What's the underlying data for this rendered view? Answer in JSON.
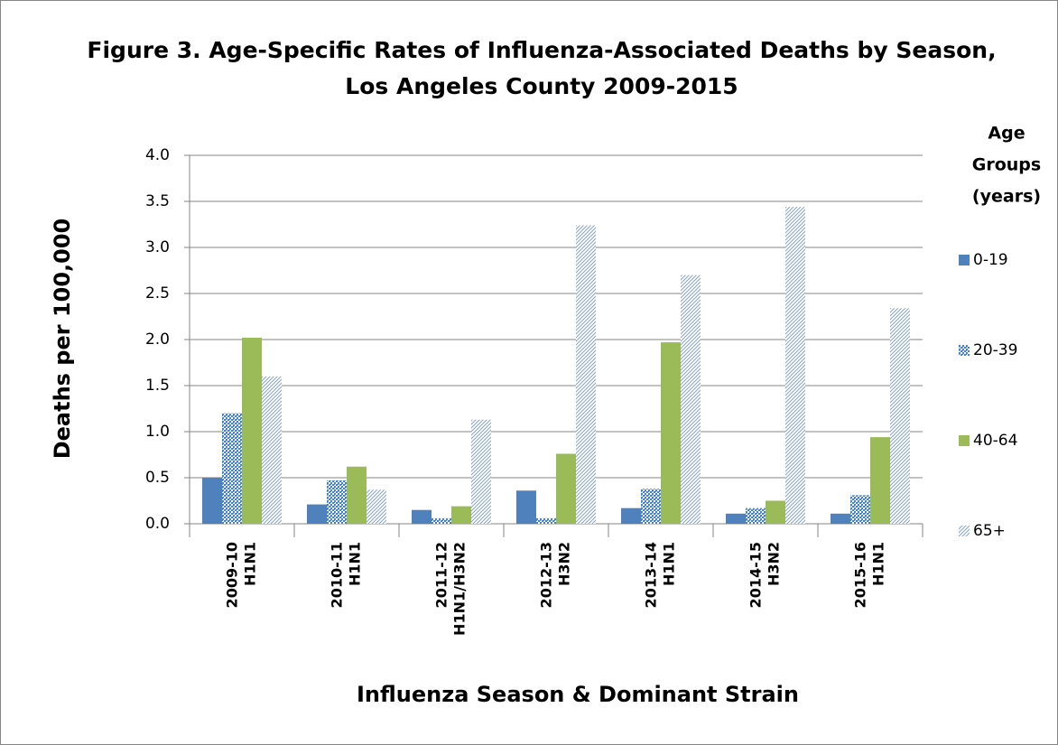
{
  "chart_data": {
    "type": "bar",
    "title": [
      "Figure 3. Age-Specific Rates of Influenza-Associated Deaths by Season,",
      "Los Angeles County 2009-2015"
    ],
    "x_label": "Influenza Season & Dominant Strain",
    "y_label": "Deaths per 100,000",
    "legend_title": [
      "Age",
      "Groups",
      "(years)"
    ],
    "legend": "right",
    "grid": true,
    "categories": [
      [
        "2009-10",
        "H1N1"
      ],
      [
        "2010-11",
        "H1N1"
      ],
      [
        "2011-12",
        "H1N1/H3N2"
      ],
      [
        "2012-13",
        "H3N2"
      ],
      [
        "2013-14",
        "H1N1"
      ],
      [
        "2014-15",
        "H3N2"
      ],
      [
        "2015-16",
        "H1N1"
      ]
    ],
    "series": [
      {
        "name": "0-19",
        "color": "#4f81bd",
        "values": [
          0.5,
          0.21,
          0.15,
          0.36,
          0.17,
          0.11,
          0.11
        ]
      },
      {
        "name": "20-39",
        "color": "#4f81bd",
        "pattern": "crosshatch",
        "values": [
          1.2,
          0.47,
          0.06,
          0.06,
          0.38,
          0.17,
          0.31
        ]
      },
      {
        "name": "40-64",
        "color": "#9bbb59",
        "values": [
          2.02,
          0.62,
          0.19,
          0.76,
          1.97,
          0.25,
          0.94
        ]
      },
      {
        "name": "65+",
        "color": "#4f81bd",
        "pattern": "diagonal",
        "values": [
          1.6,
          0.37,
          1.13,
          3.24,
          2.7,
          3.44,
          2.34
        ]
      }
    ],
    "ylim": [
      0,
      4
    ],
    "yticks": [
      {
        "value": 0,
        "label": "0.0"
      },
      0.5,
      {
        "value": 1,
        "label": "1.0"
      },
      1.5,
      {
        "value": 2,
        "label": "2.0"
      },
      2.5,
      {
        "value": 3,
        "label": "3.0"
      },
      3.5,
      {
        "value": 4,
        "label": "4.0"
      }
    ]
  }
}
